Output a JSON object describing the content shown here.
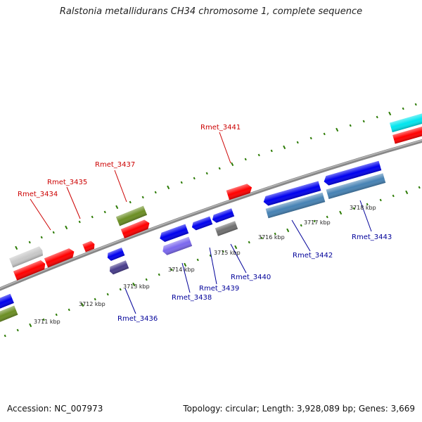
{
  "title": "Ralstonia metallidurans CH34 chromosome 1, complete sequence",
  "footer": {
    "accession": "Accession: NC_007973",
    "summary": "Topology: circular; Length: 3,928,089 bp; Genes: 3,669"
  },
  "scale_labels": [
    "3711 kbp",
    "3712 kbp",
    "3713 kbp",
    "3714 kbp",
    "3715 kbp",
    "3716 kbp",
    "3717 kbp",
    "3718 kbp"
  ],
  "forward_gene_labels": [
    "Rmet_3434",
    "Rmet_3435",
    "Rmet_3437",
    "Rmet_3441"
  ],
  "reverse_gene_labels": [
    "Rmet_3436",
    "Rmet_3438",
    "Rmet_3439",
    "Rmet_3440",
    "Rmet_3442",
    "Rmet_3443"
  ],
  "colors": {
    "forward_label": "#cc0000",
    "reverse_label": "#000099",
    "backbone": "#888888",
    "tick": "#2a7a00",
    "red": "#ff0000",
    "blue": "#0000ee",
    "grey": "#c8c8c8",
    "olive": "#6b8e23",
    "cyan": "#00e5ee",
    "steelblue": "#4682b4",
    "slateblue": "#7b68ee",
    "darkslate": "#483d8b",
    "darkgrey": "#707070"
  }
}
